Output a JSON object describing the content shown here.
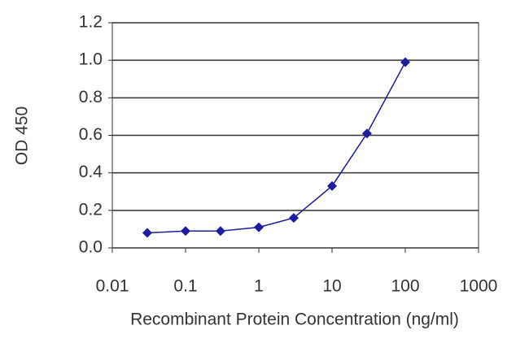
{
  "chart_data": {
    "type": "line",
    "x_label": "Recombinant Protein Concentration (ng/ml)",
    "y_label": "OD 450",
    "x": [
      0.03,
      0.1,
      0.3,
      1,
      3,
      10,
      30,
      100
    ],
    "values": [
      0.08,
      0.09,
      0.09,
      0.11,
      0.16,
      0.33,
      0.61,
      0.99
    ],
    "color": "#1c1c9c",
    "x_log": true,
    "xlim": [
      0.01,
      1000
    ],
    "xticks": [
      0.01,
      0.1,
      1,
      10,
      100,
      1000
    ],
    "ylim": [
      0,
      1.2
    ],
    "yticks": [
      {
        "value": 0,
        "label": "0.0"
      },
      {
        "value": 0.2,
        "label": "0.2"
      },
      {
        "value": 0.4,
        "label": "0.4"
      },
      {
        "value": 0.6,
        "label": "0.6"
      },
      {
        "value": 0.8,
        "label": "0.8"
      },
      {
        "value": 1,
        "label": "1.0"
      },
      {
        "value": 1.2,
        "label": "1.2"
      }
    ],
    "grid": true
  }
}
